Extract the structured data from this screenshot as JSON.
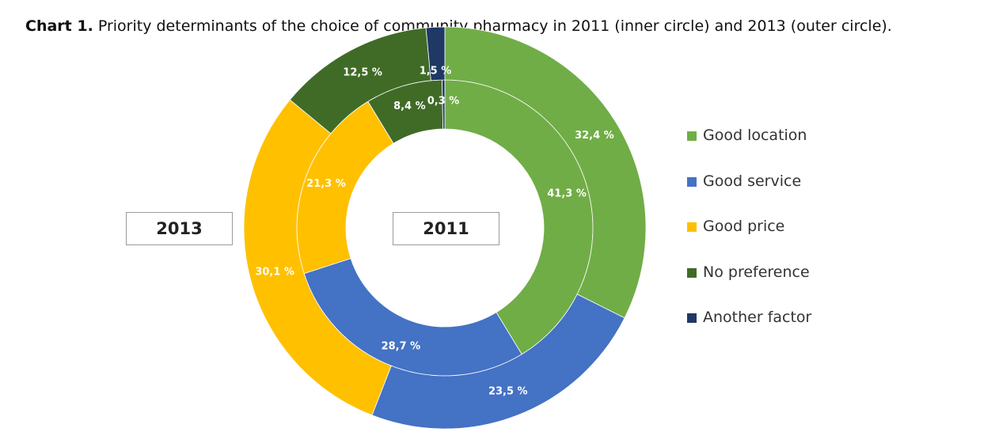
{
  "caption": {
    "lead": "Chart 1.",
    "text": " Priority determinants of the choice of community pharmacy in 2011 (inner circle) and 2013 (outer circle)."
  },
  "labels": {
    "inner_year": "2011",
    "outer_year": "2013"
  },
  "chart_data": {
    "type": "pie",
    "variant": "nested-donut",
    "categories": [
      "Good location",
      "Good service",
      "Good price",
      "No preference",
      "Another factor"
    ],
    "colors": [
      "#70AD47",
      "#4472C4",
      "#FFC000",
      "#3F6B27",
      "#1F3864"
    ],
    "series": [
      {
        "ring": "inner",
        "year_label": "2011",
        "values": [
          41.3,
          28.7,
          21.3,
          8.4,
          0.3
        ],
        "labels": [
          "41,3 %",
          "28,7 %",
          "21,3 %",
          "8,4 %",
          "0,3 %"
        ]
      },
      {
        "ring": "outer",
        "year_label": "2013",
        "values": [
          32.4,
          23.5,
          30.1,
          12.5,
          1.5
        ],
        "labels": [
          "32,4 %",
          "23,5 %",
          "30,1 %",
          "12,5 %",
          "1,5 %"
        ]
      }
    ],
    "legend": {
      "position": "right",
      "entries": [
        "Good location",
        "Good service",
        "Good price",
        "No preference",
        "Another factor"
      ]
    }
  }
}
